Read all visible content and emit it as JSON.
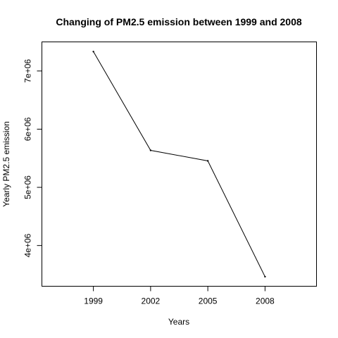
{
  "chart_data": {
    "type": "line",
    "title": "Changing of PM2.5 emission between 1999 and 2008",
    "xlabel": "Years",
    "ylabel": "Yearly PM2.5 emission",
    "x": [
      1999,
      2002,
      2005,
      2008
    ],
    "series": [
      {
        "values": [
          7332967,
          5635780,
          5454703,
          3464206
        ]
      }
    ],
    "xlim": [
      1996.3,
      2010.7
    ],
    "ylim": [
      3300000,
      7500000
    ],
    "x_ticks": [
      1999,
      2002,
      2005,
      2008
    ],
    "x_tick_labels": [
      "1999",
      "2002",
      "2005",
      "2008"
    ],
    "y_ticks": [
      4000000,
      5000000,
      6000000,
      7000000
    ],
    "y_tick_labels": [
      "4e+06",
      "5e+06",
      "6e+06",
      "7e+06"
    ],
    "grid": false,
    "legend": "none",
    "colors": {
      "line": "#000000",
      "points": "#000000"
    }
  }
}
